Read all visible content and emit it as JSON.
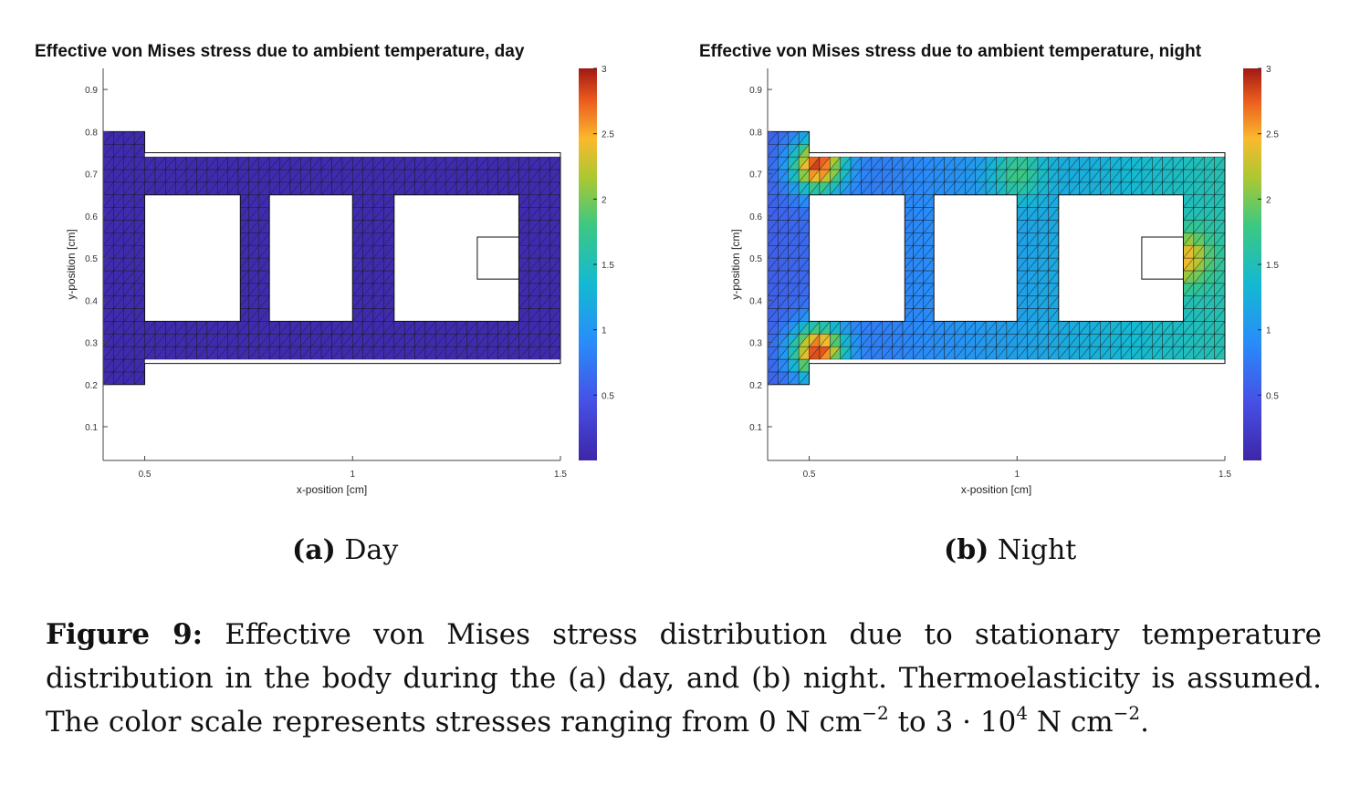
{
  "chart_data": [
    {
      "type": "heatmap",
      "title": "Effective von Mises stress due to ambient temperature, day",
      "xlabel": "x-position [cm]",
      "ylabel": "y-position [cm]",
      "xlim": [
        0.4,
        1.5
      ],
      "ylim": [
        0.02,
        0.95
      ],
      "xticks": [
        "0.5",
        "1",
        "1.5"
      ],
      "yticks": [
        "0.1",
        "0.2",
        "0.3",
        "0.4",
        "0.5",
        "0.6",
        "0.7",
        "0.8",
        "0.9"
      ],
      "colorbar": {
        "range": [
          0,
          3
        ],
        "ticks": [
          "0.5",
          "1",
          "1.5",
          "2",
          "2.5",
          "3"
        ],
        "colormap": "parula-like"
      },
      "stress_field": {
        "base": 0.05,
        "hotspots": []
      }
    },
    {
      "type": "heatmap",
      "title": "Effective von Mises stress due to ambient temperature, night",
      "xlabel": "x-position [cm]",
      "ylabel": "y-position [cm]",
      "xlim": [
        0.4,
        1.5
      ],
      "ylim": [
        0.02,
        0.95
      ],
      "xticks": [
        "0.5",
        "1",
        "1.5"
      ],
      "yticks": [
        "0.1",
        "0.2",
        "0.3",
        "0.4",
        "0.5",
        "0.6",
        "0.7",
        "0.8",
        "0.9"
      ],
      "colorbar": {
        "range": [
          0,
          3
        ],
        "ticks": [
          "0.5",
          "1",
          "1.5",
          "2",
          "2.5",
          "3"
        ],
        "colormap": "parula-like"
      },
      "stress_field": {
        "base": 0.6,
        "hotspots": [
          {
            "x": 0.52,
            "y": 0.72,
            "value": 2.8
          },
          {
            "x": 0.52,
            "y": 0.28,
            "value": 2.8
          },
          {
            "x": 1.0,
            "y": 0.7,
            "value": 1.3
          },
          {
            "x": 1.4,
            "y": 0.5,
            "value": 1.6
          }
        ]
      }
    }
  ],
  "subcaptions": [
    {
      "label": "(a)",
      "text": "Day"
    },
    {
      "label": "(b)",
      "text": "Night"
    }
  ],
  "caption": {
    "label": "Figure 9:",
    "text_1": "Effective von Mises stress distribution due to stationary temperature distribution in the body during the (a) day, and (b) night. Thermoelasticity is assumed. The color scale represents stresses ranging from 0 N cm",
    "exp_1": "−2",
    "text_2": " to 3 · 10",
    "exp_2": "4",
    "text_3": "N cm",
    "exp_3": "−2",
    "text_4": "."
  }
}
